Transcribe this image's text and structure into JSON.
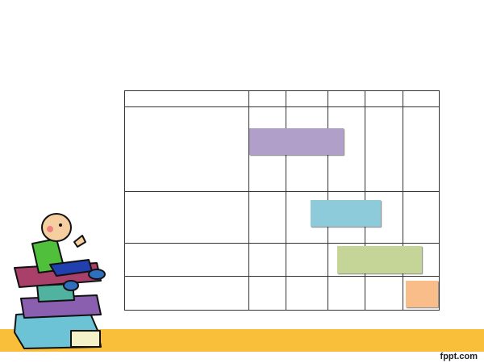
{
  "footer": {
    "brand": "fppt.com",
    "band_color": "#f9bf3b"
  },
  "gantt": {
    "columns": 6,
    "rows": 4,
    "bars": [
      {
        "row": 0,
        "color": "#b09fc8"
      },
      {
        "row": 1,
        "color": "#8ecbda"
      },
      {
        "row": 2,
        "color": "#c4d597"
      },
      {
        "row": 3,
        "color": "#f8bd88"
      }
    ]
  },
  "illustration": "boy-sitting-on-books"
}
